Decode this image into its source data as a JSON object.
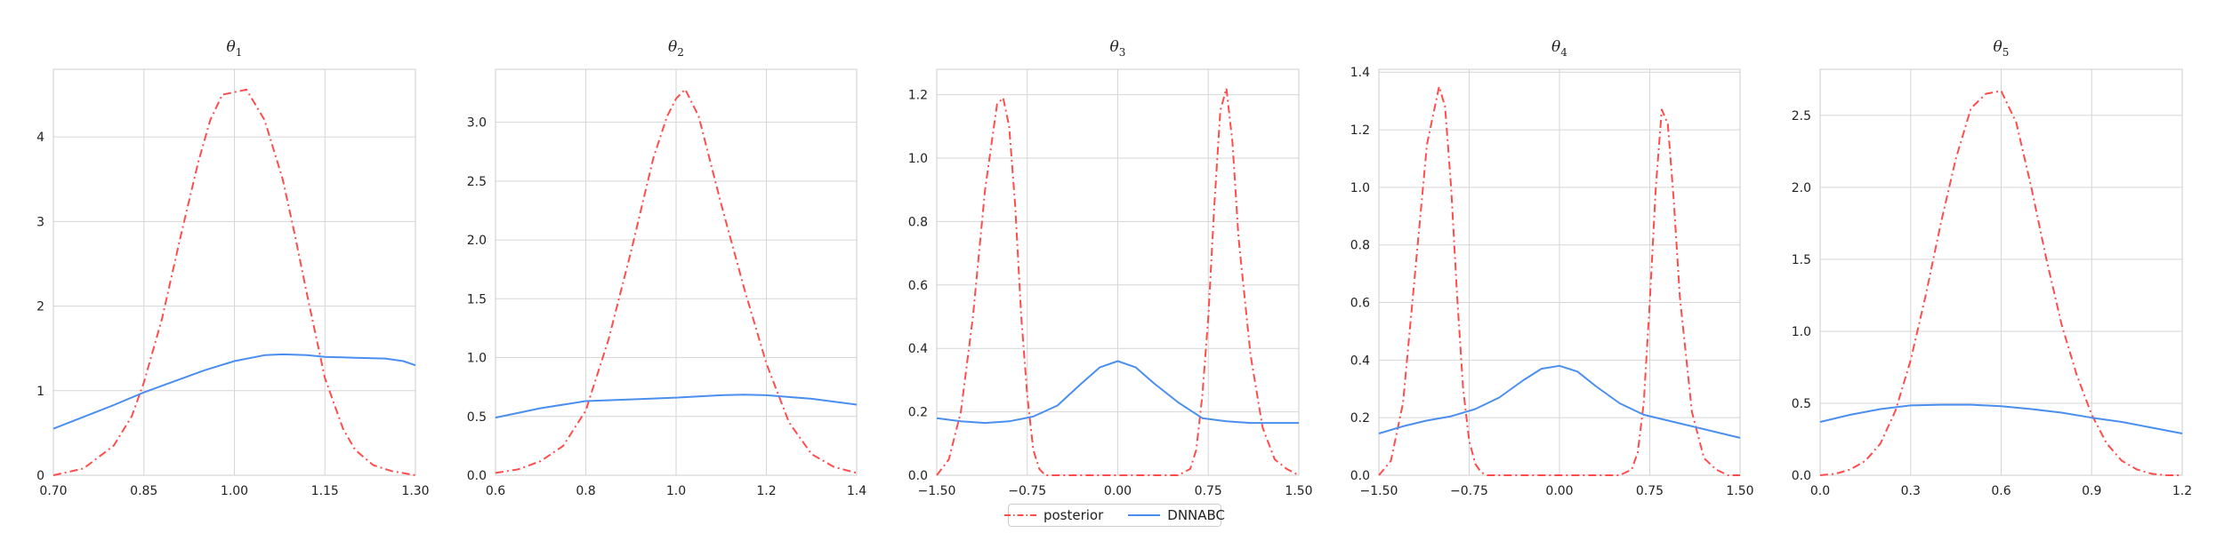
{
  "legend": {
    "posterior_label": "posterior",
    "dnnabc_label": "DNNABC"
  },
  "colors": {
    "posterior": "#ff4d4d",
    "dnnabc": "#4a8ff0",
    "grid": "#d6d6d6",
    "axis": "#cccccc",
    "text": "#222222"
  },
  "chart_data": [
    {
      "type": "line",
      "title": "θ1",
      "xlim": [
        0.7,
        1.3
      ],
      "ylim": [
        0,
        4.8
      ],
      "xticks": [
        0.7,
        0.85,
        1.0,
        1.15,
        1.3
      ],
      "xtick_labels": [
        "0.70",
        "0.85",
        "1.00",
        "1.15",
        "1.30"
      ],
      "yticks": [
        0,
        1,
        2,
        3,
        4
      ],
      "ytick_labels": [
        "0",
        "1",
        "2",
        "3",
        "4"
      ],
      "series": [
        {
          "name": "posterior",
          "style": "dashdot",
          "x": [
            0.7,
            0.75,
            0.8,
            0.83,
            0.85,
            0.88,
            0.91,
            0.94,
            0.96,
            0.98,
            1.0,
            1.02,
            1.05,
            1.08,
            1.1,
            1.12,
            1.15,
            1.18,
            1.2,
            1.23,
            1.26,
            1.3
          ],
          "y": [
            0.0,
            0.08,
            0.35,
            0.7,
            1.1,
            1.85,
            2.8,
            3.7,
            4.2,
            4.5,
            4.53,
            4.56,
            4.2,
            3.5,
            2.85,
            2.15,
            1.15,
            0.55,
            0.3,
            0.12,
            0.05,
            0.0
          ]
        },
        {
          "name": "DNNABC",
          "style": "solid",
          "x": [
            0.7,
            0.75,
            0.8,
            0.85,
            0.9,
            0.95,
            1.0,
            1.05,
            1.08,
            1.12,
            1.15,
            1.2,
            1.25,
            1.28,
            1.3
          ],
          "y": [
            0.55,
            0.69,
            0.83,
            0.98,
            1.11,
            1.24,
            1.35,
            1.42,
            1.43,
            1.42,
            1.4,
            1.39,
            1.38,
            1.35,
            1.3
          ]
        }
      ]
    },
    {
      "type": "line",
      "title": "θ2",
      "xlim": [
        0.6,
        1.4
      ],
      "ylim": [
        0,
        3.45
      ],
      "xticks": [
        0.6,
        0.8,
        1.0,
        1.2,
        1.4
      ],
      "xtick_labels": [
        "0.6",
        "0.8",
        "1.0",
        "1.2",
        "1.4"
      ],
      "yticks": [
        0,
        0.5,
        1.0,
        1.5,
        2.0,
        2.5,
        3.0
      ],
      "ytick_labels": [
        "0.0",
        "0.5",
        "1.0",
        "1.5",
        "2.0",
        "2.5",
        "3.0"
      ],
      "series": [
        {
          "name": "posterior",
          "style": "dashdot",
          "x": [
            0.6,
            0.65,
            0.7,
            0.75,
            0.8,
            0.85,
            0.9,
            0.95,
            0.98,
            1.0,
            1.02,
            1.05,
            1.1,
            1.15,
            1.2,
            1.25,
            1.3,
            1.35,
            1.4
          ],
          "y": [
            0.02,
            0.05,
            0.12,
            0.25,
            0.55,
            1.15,
            1.9,
            2.7,
            3.05,
            3.2,
            3.28,
            3.05,
            2.3,
            1.6,
            0.95,
            0.45,
            0.18,
            0.07,
            0.02
          ]
        },
        {
          "name": "DNNABC",
          "style": "solid",
          "x": [
            0.6,
            0.7,
            0.8,
            0.9,
            1.0,
            1.1,
            1.15,
            1.2,
            1.3,
            1.4
          ],
          "y": [
            0.49,
            0.57,
            0.63,
            0.645,
            0.66,
            0.68,
            0.685,
            0.68,
            0.65,
            0.6
          ]
        }
      ]
    },
    {
      "type": "line",
      "title": "θ3",
      "xlim": [
        -1.5,
        1.5
      ],
      "ylim": [
        0,
        1.28
      ],
      "xticks": [
        -1.5,
        -0.75,
        0.0,
        0.75,
        1.5
      ],
      "xtick_labels": [
        "−1.50",
        "−0.75",
        "0.00",
        "0.75",
        "1.50"
      ],
      "yticks": [
        0,
        0.2,
        0.4,
        0.6,
        0.8,
        1.0,
        1.2
      ],
      "ytick_labels": [
        "0.0",
        "0.2",
        "0.4",
        "0.6",
        "0.8",
        "1.0",
        "1.2"
      ],
      "series": [
        {
          "name": "posterior",
          "style": "dashdot",
          "x": [
            -1.5,
            -1.4,
            -1.3,
            -1.2,
            -1.1,
            -1.0,
            -0.95,
            -0.9,
            -0.85,
            -0.8,
            -0.75,
            -0.7,
            -0.65,
            -0.6,
            -0.5,
            -0.4,
            -0.3,
            0.0,
            0.3,
            0.4,
            0.5,
            0.6,
            0.65,
            0.7,
            0.75,
            0.8,
            0.85,
            0.9,
            0.95,
            1.0,
            1.1,
            1.2,
            1.3,
            1.4,
            1.5
          ],
          "y": [
            0.0,
            0.05,
            0.2,
            0.5,
            0.9,
            1.17,
            1.19,
            1.1,
            0.85,
            0.5,
            0.25,
            0.08,
            0.02,
            0.0,
            0.0,
            0.0,
            0.0,
            0.0,
            0.0,
            0.0,
            0.0,
            0.02,
            0.08,
            0.25,
            0.5,
            0.85,
            1.15,
            1.22,
            1.05,
            0.75,
            0.38,
            0.15,
            0.05,
            0.02,
            0.0
          ]
        },
        {
          "name": "DNNABC",
          "style": "solid",
          "x": [
            -1.5,
            -1.3,
            -1.1,
            -0.9,
            -0.7,
            -0.5,
            -0.3,
            -0.15,
            0.0,
            0.15,
            0.3,
            0.5,
            0.7,
            0.9,
            1.1,
            1.3,
            1.5
          ],
          "y": [
            0.18,
            0.17,
            0.165,
            0.17,
            0.185,
            0.22,
            0.29,
            0.34,
            0.36,
            0.34,
            0.29,
            0.23,
            0.18,
            0.17,
            0.165,
            0.165,
            0.165
          ]
        }
      ]
    },
    {
      "type": "line",
      "title": "θ4",
      "xlim": [
        -1.5,
        1.5
      ],
      "ylim": [
        0,
        1.41
      ],
      "xticks": [
        -1.5,
        -0.75,
        0.0,
        0.75,
        1.5
      ],
      "xtick_labels": [
        "−1.50",
        "−0.75",
        "0.00",
        "0.75",
        "1.50"
      ],
      "yticks": [
        0,
        0.2,
        0.4,
        0.6,
        0.8,
        1.0,
        1.2,
        1.4
      ],
      "ytick_labels": [
        "0.0",
        "0.2",
        "0.4",
        "0.6",
        "0.8",
        "1.0",
        "1.2",
        "1.4"
      ],
      "series": [
        {
          "name": "posterior",
          "style": "dashdot",
          "x": [
            -1.5,
            -1.4,
            -1.3,
            -1.2,
            -1.1,
            -1.0,
            -0.95,
            -0.9,
            -0.85,
            -0.8,
            -0.75,
            -0.7,
            -0.65,
            -0.6,
            -0.5,
            -0.4,
            0.0,
            0.4,
            0.5,
            0.6,
            0.65,
            0.7,
            0.75,
            0.8,
            0.85,
            0.9,
            0.95,
            1.0,
            1.1,
            1.2,
            1.3,
            1.4,
            1.5
          ],
          "y": [
            0.0,
            0.05,
            0.25,
            0.7,
            1.15,
            1.35,
            1.28,
            1.0,
            0.62,
            0.3,
            0.12,
            0.04,
            0.01,
            0.0,
            0.0,
            0.0,
            0.0,
            0.0,
            0.0,
            0.02,
            0.08,
            0.25,
            0.6,
            1.0,
            1.27,
            1.22,
            0.95,
            0.62,
            0.22,
            0.06,
            0.02,
            0.0,
            0.0
          ]
        },
        {
          "name": "DNNABC",
          "style": "solid",
          "x": [
            -1.5,
            -1.3,
            -1.1,
            -0.9,
            -0.7,
            -0.5,
            -0.3,
            -0.15,
            0.0,
            0.15,
            0.3,
            0.5,
            0.7,
            0.9,
            1.1,
            1.3,
            1.5
          ],
          "y": [
            0.145,
            0.17,
            0.19,
            0.205,
            0.23,
            0.27,
            0.33,
            0.37,
            0.38,
            0.36,
            0.31,
            0.25,
            0.21,
            0.19,
            0.17,
            0.15,
            0.13
          ]
        }
      ]
    },
    {
      "type": "line",
      "title": "θ5",
      "xlim": [
        0.0,
        1.2
      ],
      "ylim": [
        0,
        2.82
      ],
      "xticks": [
        0.0,
        0.3,
        0.6,
        0.9,
        1.2
      ],
      "xtick_labels": [
        "0.0",
        "0.3",
        "0.6",
        "0.9",
        "1.2"
      ],
      "yticks": [
        0,
        0.5,
        1.0,
        1.5,
        2.0,
        2.5
      ],
      "ytick_labels": [
        "0.0",
        "0.5",
        "1.0",
        "1.5",
        "2.0",
        "2.5"
      ],
      "series": [
        {
          "name": "posterior",
          "style": "dashdot",
          "x": [
            0.0,
            0.05,
            0.1,
            0.15,
            0.2,
            0.25,
            0.3,
            0.35,
            0.4,
            0.45,
            0.5,
            0.55,
            0.6,
            0.65,
            0.7,
            0.75,
            0.8,
            0.85,
            0.9,
            0.95,
            1.0,
            1.05,
            1.1,
            1.15,
            1.2
          ],
          "y": [
            0.0,
            0.01,
            0.04,
            0.1,
            0.22,
            0.45,
            0.8,
            1.25,
            1.75,
            2.2,
            2.55,
            2.65,
            2.67,
            2.45,
            2.0,
            1.5,
            1.05,
            0.7,
            0.42,
            0.22,
            0.1,
            0.04,
            0.01,
            0.0,
            0.0
          ]
        },
        {
          "name": "DNNABC",
          "style": "solid",
          "x": [
            0.0,
            0.1,
            0.2,
            0.3,
            0.4,
            0.5,
            0.6,
            0.7,
            0.8,
            0.9,
            1.0,
            1.1,
            1.2
          ],
          "y": [
            0.37,
            0.42,
            0.46,
            0.485,
            0.49,
            0.49,
            0.48,
            0.46,
            0.435,
            0.4,
            0.37,
            0.33,
            0.29
          ]
        }
      ]
    }
  ]
}
